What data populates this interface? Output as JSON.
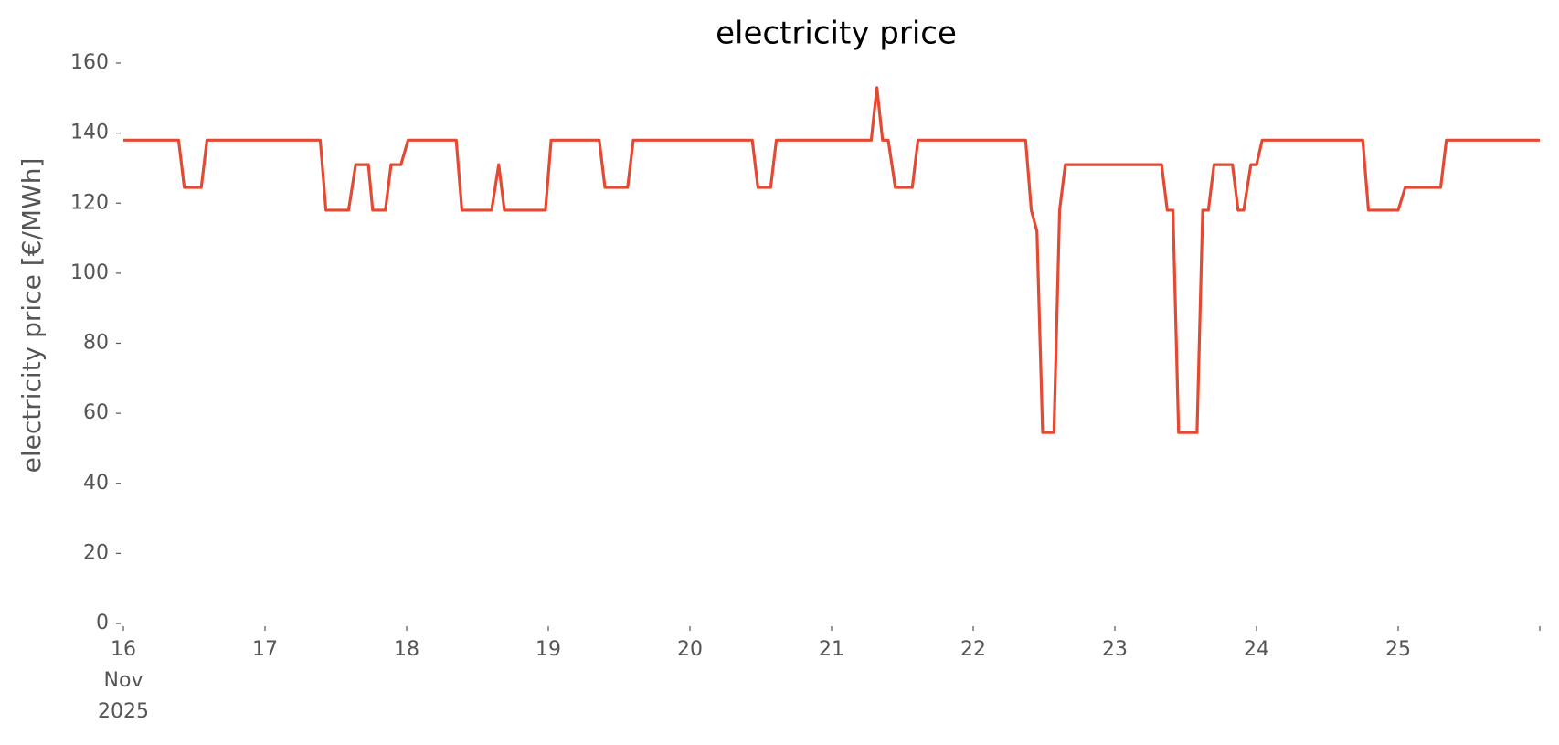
{
  "chart_data": {
    "type": "line",
    "title": "electricity price",
    "ylabel": "electricity price [€/MWh]",
    "x": [
      16.0,
      16.39,
      16.43,
      16.55,
      16.59,
      17.39,
      17.43,
      17.59,
      17.64,
      17.73,
      17.76,
      17.85,
      17.89,
      17.96,
      18.01,
      18.35,
      18.39,
      18.6,
      18.65,
      18.69,
      18.98,
      19.02,
      19.36,
      19.4,
      19.56,
      19.6,
      20.44,
      20.48,
      20.57,
      20.61,
      21.28,
      21.32,
      21.36,
      21.4,
      21.45,
      21.57,
      21.61,
      22.37,
      22.41,
      22.45,
      22.49,
      22.57,
      22.61,
      22.65,
      23.33,
      23.37,
      23.41,
      23.45,
      23.58,
      23.62,
      23.66,
      23.7,
      23.83,
      23.87,
      23.91,
      23.96,
      24.0,
      24.04,
      24.75,
      24.79,
      25.0,
      25.05,
      25.3,
      25.34,
      26.0
    ],
    "series": [
      {
        "name": "electricity price",
        "color": "#e24a33",
        "values": [
          138,
          138,
          124.5,
          124.5,
          138,
          138,
          118,
          118,
          131,
          131,
          118,
          118,
          131,
          131,
          138,
          138,
          118,
          118,
          131,
          118,
          118,
          138,
          138,
          124.5,
          124.5,
          138,
          138,
          124.5,
          124.5,
          138,
          138,
          153,
          138,
          138,
          124.5,
          124.5,
          138,
          138,
          118,
          112,
          54.5,
          54.5,
          118,
          131,
          131,
          118,
          118,
          54.5,
          54.5,
          118,
          118,
          131,
          131,
          118,
          118,
          131,
          131,
          138,
          138,
          118,
          118,
          124.5,
          124.5,
          138,
          138
        ]
      }
    ],
    "xlim": [
      16,
      26
    ],
    "xticks": [
      {
        "value": 16,
        "label": "16\nNov\n2025"
      },
      17,
      18,
      19,
      20,
      21,
      22,
      23,
      24,
      25,
      {
        "value": 26,
        "label": null
      }
    ],
    "ylim": [
      0,
      160
    ],
    "yticks": [
      0,
      20,
      40,
      60,
      80,
      100,
      120,
      140,
      160
    ],
    "grid": false
  }
}
